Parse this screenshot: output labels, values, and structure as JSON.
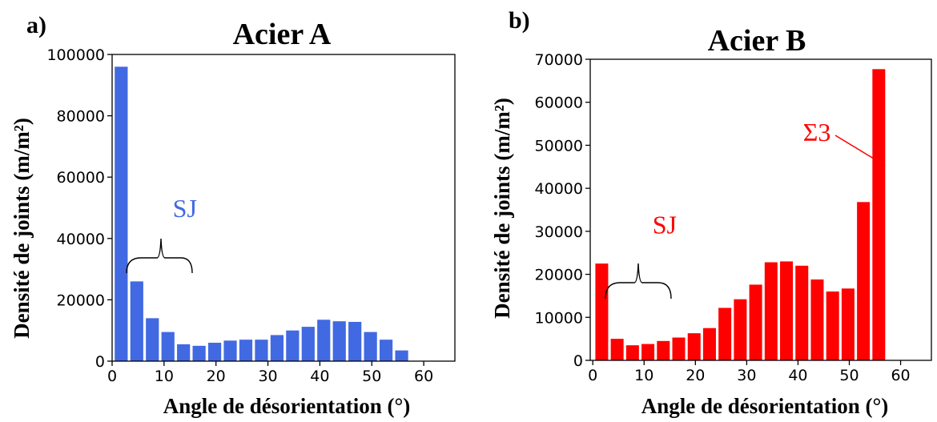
{
  "chart_data": [
    {
      "type": "bar",
      "panel_label": "a)",
      "title": "Acier A",
      "xlabel": "Angle de désorientation (°)",
      "ylabel": "Densité de joints (m/m²)",
      "xlim": [
        0,
        66
      ],
      "ylim": [
        0,
        100000
      ],
      "xticks": [
        0,
        10,
        20,
        30,
        40,
        50,
        60
      ],
      "yticks": [
        0,
        20000,
        40000,
        60000,
        80000,
        100000
      ],
      "color": "#4169e1",
      "x": [
        3,
        6,
        9,
        12,
        15,
        18,
        21,
        24,
        27,
        30,
        33,
        36,
        39,
        42,
        45,
        48,
        51,
        54,
        57,
        60
      ],
      "values": [
        96000,
        26000,
        14000,
        9500,
        5500,
        5000,
        6000,
        6700,
        7000,
        7000,
        8500,
        10000,
        11200,
        13500,
        13000,
        12800,
        9500,
        7000,
        3500,
        0
      ],
      "annotations": [
        {
          "text": "SJ",
          "x": 14,
          "y": 47000,
          "color": "#4169e1"
        }
      ]
    },
    {
      "type": "bar",
      "panel_label": "b)",
      "title": "Acier B",
      "xlabel": "Angle de désorientation (°)",
      "ylabel": "Densité de joints (m/m²)",
      "xlim": [
        -0.5,
        66
      ],
      "ylim": [
        0,
        70000
      ],
      "xticks": [
        0,
        10,
        20,
        30,
        40,
        50,
        60
      ],
      "yticks": [
        0,
        10000,
        20000,
        30000,
        40000,
        50000,
        60000,
        70000
      ],
      "color": "#ff0000",
      "x": [
        3,
        6,
        9,
        12,
        15,
        18,
        21,
        24,
        27,
        30,
        33,
        36,
        39,
        42,
        45,
        48,
        51,
        54,
        57,
        60
      ],
      "values": [
        22500,
        5000,
        3500,
        3800,
        4500,
        5300,
        6300,
        7500,
        12200,
        14200,
        17600,
        22800,
        23000,
        22000,
        18800,
        16000,
        16700,
        36800,
        67700,
        0
      ],
      "annotations": [
        {
          "text": "SJ",
          "x": 14,
          "y": 29500,
          "color": "#ff0000"
        },
        {
          "text": "Σ3",
          "x": 48,
          "y": 56000,
          "color": "#ff0000"
        }
      ]
    }
  ]
}
